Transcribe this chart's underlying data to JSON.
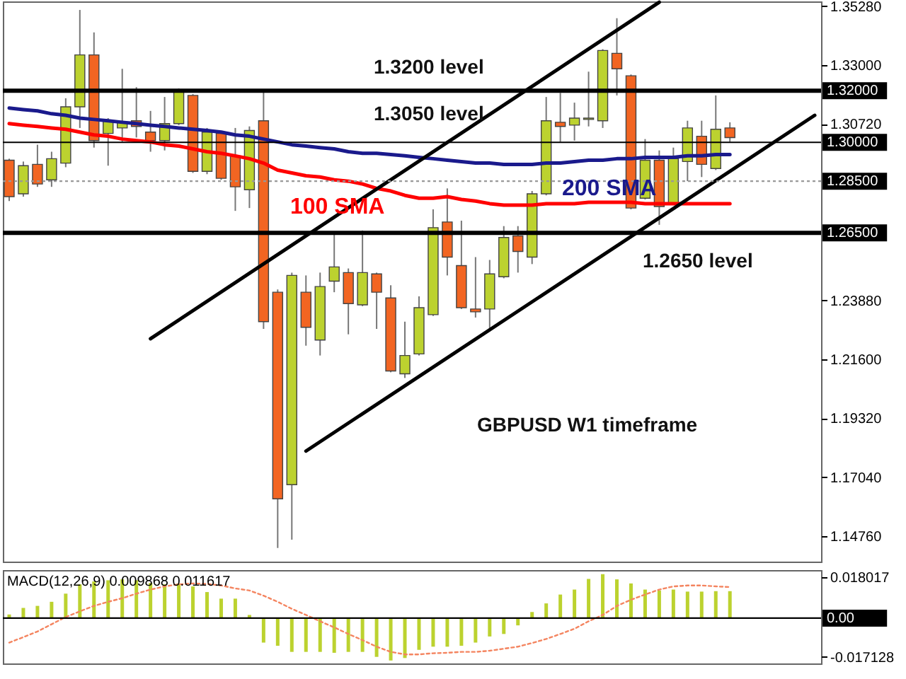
{
  "chart_data": [
    {
      "type": "candlestick",
      "categories": [
        null,
        null,
        null,
        null,
        null,
        null,
        null,
        null,
        null,
        null,
        null,
        null,
        null,
        null,
        null,
        null,
        null,
        null,
        null,
        null,
        null,
        null,
        null,
        null,
        null,
        null,
        null,
        null,
        null,
        null,
        null,
        null,
        null,
        null,
        null,
        null,
        null,
        null,
        null,
        null,
        null,
        null,
        null,
        null,
        null,
        null,
        null,
        null,
        null,
        null,
        null,
        null,
        null,
        null,
        null,
        null,
        null,
        null
      ],
      "ohlc": [
        [
          1.2931,
          1.2937,
          1.2773,
          1.279
        ],
        [
          1.2801,
          1.2926,
          1.279,
          1.291
        ],
        [
          1.2915,
          1.2991,
          1.2828,
          1.2839
        ],
        [
          1.2855,
          1.2964,
          1.2828,
          1.2937
        ],
        [
          1.292,
          1.3171,
          1.2904,
          1.3138
        ],
        [
          1.3138,
          1.3513,
          1.3056,
          1.3339
        ],
        [
          1.3339,
          1.3426,
          1.298,
          1.3007
        ],
        [
          1.3035,
          1.3094,
          1.291,
          1.3084
        ],
        [
          1.3056,
          1.3285,
          1.3002,
          1.3078
        ],
        [
          1.3084,
          1.3214,
          1.3019,
          1.3062
        ],
        [
          1.304,
          1.3122,
          1.2964,
          1.3007
        ],
        [
          1.3007,
          1.3176,
          1.2969,
          1.3073
        ],
        [
          1.3073,
          1.3209,
          1.3067,
          1.3203
        ],
        [
          1.3182,
          1.3187,
          1.2882,
          1.2888
        ],
        [
          1.2888,
          1.3056,
          1.2877,
          1.304
        ],
        [
          1.3035,
          1.304,
          1.2855,
          1.2861
        ],
        [
          1.2948,
          1.3056,
          1.2735,
          1.2828
        ],
        [
          1.2817,
          1.3062,
          1.2746,
          1.3046
        ],
        [
          1.3084,
          1.3203,
          1.2278,
          1.2306
        ],
        [
          1.242,
          1.2431,
          1.143,
          1.162
        ],
        [
          1.1675,
          1.2496,
          1.1462,
          1.2485
        ],
        [
          1.242,
          1.2485,
          1.2213,
          1.2284
        ],
        [
          1.2235,
          1.2496,
          1.2175,
          1.2442
        ],
        [
          1.2463,
          1.2648,
          1.242,
          1.2518
        ],
        [
          1.2496,
          1.2512,
          1.2257,
          1.2376
        ],
        [
          1.2371,
          1.2659,
          1.2366,
          1.2496
        ],
        [
          1.2491,
          1.2496,
          1.2278,
          1.242
        ],
        [
          1.2398,
          1.2447,
          1.211,
          1.2115
        ],
        [
          1.2104,
          1.2306,
          1.2088,
          1.2175
        ],
        [
          1.2181,
          1.2404,
          1.2175,
          1.236
        ],
        [
          1.2333,
          1.2741,
          1.2328,
          1.267
        ],
        [
          1.2692,
          1.2822,
          1.2485,
          1.2556
        ],
        [
          1.2523,
          1.2697,
          1.2355,
          1.236
        ],
        [
          1.2355,
          1.2556,
          1.2322,
          1.2344
        ],
        [
          1.2355,
          1.2545,
          1.2268,
          1.2491
        ],
        [
          1.248,
          1.2676,
          1.2474,
          1.2632
        ],
        [
          1.2638,
          1.2676,
          1.2496,
          1.2578
        ],
        [
          1.2556,
          1.2812,
          1.2529,
          1.2801
        ],
        [
          1.2801,
          1.3176,
          1.2795,
          1.3084
        ],
        [
          1.3078,
          1.3192,
          1.3002,
          1.3062
        ],
        [
          1.3067,
          1.3154,
          1.3007,
          1.3094
        ],
        [
          1.3089,
          1.3274,
          1.3062,
          1.3094
        ],
        [
          1.3084,
          1.3361,
          1.3056,
          1.3356
        ],
        [
          1.3345,
          1.3481,
          1.3182,
          1.3285
        ],
        [
          1.3258,
          1.3263,
          1.2741,
          1.2746
        ],
        [
          1.2784,
          1.3013,
          1.2779,
          1.2931
        ],
        [
          1.2931,
          1.2969,
          1.2681,
          1.2752
        ],
        [
          1.2763,
          1.298,
          1.2757,
          1.2937
        ],
        [
          1.2926,
          1.3084,
          1.285,
          1.3056
        ],
        [
          1.3024,
          1.3084,
          1.2866,
          1.2915
        ],
        [
          1.2899,
          1.3182,
          1.2893,
          1.3051
        ],
        [
          1.3056,
          1.3078,
          1.3002,
          1.3019
        ],
        null,
        null,
        null,
        null,
        null,
        null
      ],
      "colors": [
        "#f26522",
        "#bcd22f",
        "#f26522",
        "#bcd22f",
        "#bcd22f",
        "#bcd22f",
        "#f26522",
        "#bcd22f",
        "#bcd22f",
        "#f26522",
        "#f26522",
        "#bcd22f",
        "#bcd22f",
        "#f26522",
        "#bcd22f",
        "#f26522",
        "#f26522",
        "#bcd22f",
        "#f26522",
        "#f26522",
        "#bcd22f",
        "#f26522",
        "#bcd22f",
        "#bcd22f",
        "#f26522",
        "#bcd22f",
        "#f26522",
        "#f26522",
        "#bcd22f",
        "#bcd22f",
        "#bcd22f",
        "#f26522",
        "#f26522",
        "#f26522",
        "#bcd22f",
        "#bcd22f",
        "#f26522",
        "#bcd22f",
        "#bcd22f",
        "#f26522",
        "#bcd22f",
        "#bcd22f",
        "#bcd22f",
        "#f26522",
        "#f26522",
        "#bcd22f",
        "#f26522",
        "#bcd22f",
        "#bcd22f",
        "#f26522",
        "#bcd22f",
        "#f26522",
        null,
        null,
        null,
        null,
        null,
        null
      ],
      "series": [
        {
          "type": "line",
          "name": "100 SMA",
          "color": "#ff0000",
          "values": [
            1.3073,
            1.3067,
            1.3062,
            1.3056,
            1.3051,
            1.304,
            1.3029,
            1.3024,
            1.3013,
            1.3007,
            1.3002,
            1.2991,
            1.2986,
            1.2975,
            1.2964,
            1.2958,
            1.2948,
            1.2937,
            1.292,
            1.2893,
            1.2882,
            1.2871,
            1.2866,
            1.2855,
            1.285,
            1.2839,
            1.2822,
            1.2812,
            1.2795,
            1.2784,
            1.2784,
            1.279,
            1.2779,
            1.2773,
            1.2763,
            1.2757,
            1.2757,
            1.2757,
            1.2763,
            1.2763,
            1.2763,
            1.2768,
            1.2768,
            1.2768,
            1.2768,
            1.2763,
            1.2763,
            1.2763,
            1.2763,
            1.2763,
            1.2763,
            1.2763,
            null,
            null,
            null,
            null,
            null,
            null
          ]
        },
        {
          "type": "line",
          "name": "200 SMA",
          "color": "#1a1a8c",
          "values": [
            1.3133,
            1.3127,
            1.3122,
            1.3111,
            1.3105,
            1.3094,
            1.3089,
            1.3084,
            1.3078,
            1.3073,
            1.3067,
            1.3062,
            1.3056,
            1.3051,
            1.3046,
            1.304,
            1.3029,
            1.3024,
            1.3013,
            1.3002,
            1.2991,
            1.2986,
            1.298,
            1.2975,
            1.2964,
            1.2958,
            1.2958,
            1.2953,
            1.2948,
            1.2942,
            1.2937,
            1.2931,
            1.2926,
            1.292,
            1.292,
            1.2915,
            1.2915,
            1.2915,
            1.292,
            1.292,
            1.2926,
            1.2931,
            1.2931,
            1.2937,
            1.2937,
            1.2942,
            1.2942,
            1.2942,
            1.2948,
            1.2948,
            1.2953,
            1.2953,
            null,
            null,
            null,
            null,
            null,
            null
          ]
        },
        {
          "type": "line",
          "color": "#000000",
          "values": [
            null,
            null,
            null,
            null,
            null,
            null,
            null,
            null,
            null,
            null,
            1.224,
            null,
            null,
            null,
            null,
            null,
            null,
            null,
            null,
            null,
            null,
            null,
            null,
            null,
            null,
            null,
            null,
            null,
            null,
            null,
            null,
            null,
            null,
            null,
            null,
            null,
            null,
            null,
            null,
            null,
            null,
            null,
            null,
            null,
            null,
            null,
            1.3543,
            null,
            null,
            null,
            null,
            null,
            null,
            null,
            null,
            null,
            null,
            null
          ]
        },
        {
          "type": "line",
          "color": "#000000",
          "values": [
            null,
            null,
            null,
            null,
            null,
            null,
            null,
            null,
            null,
            null,
            null,
            null,
            null,
            null,
            null,
            null,
            null,
            null,
            null,
            null,
            null,
            1.1805,
            null,
            null,
            null,
            null,
            null,
            null,
            null,
            null,
            null,
            null,
            null,
            null,
            null,
            null,
            null,
            null,
            null,
            null,
            null,
            null,
            null,
            null,
            null,
            null,
            null,
            null,
            null,
            null,
            null,
            null,
            null,
            null,
            null,
            null,
            null,
            1.3105
          ]
        }
      ],
      "ylim": [
        1.1377,
        1.3546
      ],
      "yticks": [
        {
          "value": 1.3528,
          "label": "1.35280"
        },
        {
          "value": 1.33,
          "label": "1.33000"
        },
        {
          "value": 1.3072,
          "label": "1.30720"
        },
        {
          "value": 1.2388,
          "label": "1.23880"
        },
        {
          "value": 1.216,
          "label": "1.21600"
        },
        {
          "value": 1.1932,
          "label": "1.19320"
        },
        {
          "value": 1.1704,
          "label": "1.17040"
        },
        {
          "value": 1.1476,
          "label": "1.14760"
        }
      ],
      "ref_lines": [
        {
          "axis": "y",
          "value": 1.32,
          "label": "1.32000",
          "color": "#000000",
          "line_style": "solid"
        },
        {
          "axis": "y",
          "value": 1.3,
          "label": "1.30000",
          "color": "#000000",
          "line_style": "solid"
        },
        {
          "axis": "y",
          "value": 1.285,
          "label": "1.28500",
          "color": "#999999",
          "line_style": "dotted"
        },
        {
          "axis": "y",
          "value": 1.265,
          "label": "1.26500",
          "color": "#000000",
          "line_style": "solid"
        }
      ],
      "annotations": [
        "1.3200 level",
        "1.3050 level",
        "1.2650 level",
        "GBPUSD W1 timeframe"
      ],
      "tick_labels": "y"
    },
    {
      "type": "bar",
      "title": "MACD(12,26,9) 0.009868 0.011617",
      "categories": [
        null,
        null,
        null,
        null,
        null,
        null,
        null,
        null,
        null,
        null,
        null,
        null,
        null,
        null,
        null,
        null,
        null,
        null,
        null,
        null,
        null,
        null,
        null,
        null,
        null,
        null,
        null,
        null,
        null,
        null,
        null,
        null,
        null,
        null,
        null,
        null,
        null,
        null,
        null,
        null,
        null,
        null,
        null,
        null,
        null,
        null,
        null,
        null,
        null,
        null,
        null,
        null,
        null,
        null,
        null,
        null,
        null,
        null
      ],
      "series": [
        {
          "color": "#bcd22f",
          "values": [
            0.0016,
            0.0045,
            0.0054,
            0.0072,
            0.0108,
            0.0149,
            0.0162,
            0.0167,
            0.0171,
            0.0167,
            0.0155,
            0.0149,
            0.0153,
            0.014,
            0.0115,
            0.0086,
            0.0086,
            0.0014,
            -0.0108,
            -0.0122,
            -0.0149,
            -0.0149,
            -0.0149,
            -0.0153,
            -0.0149,
            -0.0149,
            -0.0171,
            -0.0187,
            -0.0176,
            -0.014,
            -0.0126,
            -0.0126,
            -0.0122,
            -0.0108,
            -0.0081,
            -0.007,
            -0.0032,
            0.0027,
            0.0065,
            0.0104,
            0.0126,
            0.0173,
            0.0194,
            0.0171,
            0.0153,
            0.0126,
            0.0122,
            0.0126,
            0.0117,
            0.0117,
            0.0119,
            0.0119,
            null,
            null,
            null,
            null,
            null,
            null
          ]
        },
        {
          "type": "line",
          "color": "#f4845f",
          "line_style": "dotted",
          "values": [
            -0.0108,
            -0.0084,
            -0.0059,
            -0.0027,
            0.0005,
            0.003,
            0.0054,
            0.0072,
            0.0088,
            0.0108,
            0.0126,
            0.014,
            0.0149,
            0.0153,
            0.0151,
            0.0144,
            0.0131,
            0.0122,
            0.0099,
            0.0072,
            0.0041,
            0.0014,
            -0.0014,
            -0.0041,
            -0.007,
            -0.0097,
            -0.0126,
            -0.0149,
            -0.016,
            -0.016,
            -0.0155,
            -0.0153,
            -0.0149,
            -0.0149,
            -0.0144,
            -0.0135,
            -0.0126,
            -0.011,
            -0.0092,
            -0.007,
            -0.0047,
            -0.0014,
            0.0014,
            0.0054,
            0.0081,
            0.0104,
            0.0126,
            0.014,
            0.0144,
            0.0144,
            0.014,
            0.0137,
            null,
            null,
            null,
            null,
            null,
            null
          ]
        }
      ],
      "ylim": [
        -0.02,
        0.0212
      ],
      "yticks": [
        0.018017,
        -0.017128
      ],
      "ref_lines": [
        {
          "axis": "y",
          "value": 0,
          "label": "0.00",
          "color": "#000000",
          "line_style": "solid"
        }
      ],
      "tick_labels": "y"
    }
  ]
}
